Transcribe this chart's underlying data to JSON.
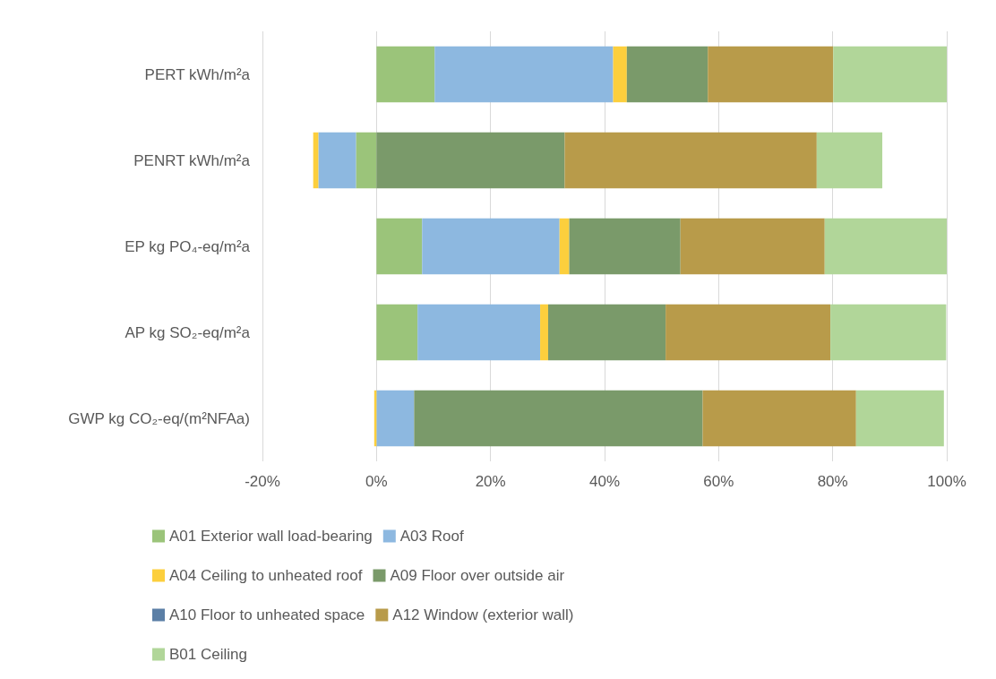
{
  "chart_data": {
    "type": "bar",
    "orientation": "horizontal",
    "stacked": true,
    "categories": [
      "PERT kWh/m²a",
      "PENRT kWh/m²a",
      "EP kg PO₄-eq/m²a",
      "AP kg SO₂-eq/m²a",
      "GWP kg CO₂-eq/(m²NFAa)"
    ],
    "series": [
      {
        "name": "A01 Exterior wall load-bearing",
        "color": "#9bc47a",
        "values": [
          10.2,
          -3.6,
          8,
          7.2,
          0
        ]
      },
      {
        "name": "A03 Roof",
        "color": "#8db8e0",
        "values": [
          31.3,
          -6.6,
          24.1,
          21.5,
          6.6
        ]
      },
      {
        "name": "A04 Ceiling to unheated roof",
        "color": "#fccf3d",
        "values": [
          2.4,
          -0.9,
          1.7,
          1.4,
          -0.4
        ]
      },
      {
        "name": "A09 Floor over outside air",
        "color": "#7a9a6a",
        "values": [
          14.2,
          33,
          19.5,
          20.6,
          50.6
        ]
      },
      {
        "name": "A10 Floor to unheated space",
        "color": "#5b7fa6",
        "values": [
          0,
          0,
          0,
          0,
          0
        ]
      },
      {
        "name": "A12 Window (exterior wall)",
        "color": "#b89b4a",
        "values": [
          22,
          44.2,
          25.3,
          28.9,
          26.9
        ]
      },
      {
        "name": "B01 Ceiling",
        "color": "#b1d699",
        "values": [
          20,
          11.5,
          21.4,
          20.3,
          15.4
        ]
      }
    ],
    "xlim": [
      -20,
      100
    ],
    "xticks": [
      {
        "value": -20,
        "label": "-20%"
      },
      {
        "value": 0,
        "label": "0%"
      },
      {
        "value": 20,
        "label": "20%"
      },
      {
        "value": 40,
        "label": "40%"
      },
      {
        "value": 60,
        "label": "60%"
      },
      {
        "value": 80,
        "label": "80%"
      },
      {
        "value": 100,
        "label": "100%"
      }
    ],
    "grid": "x",
    "legend": "bottom"
  }
}
